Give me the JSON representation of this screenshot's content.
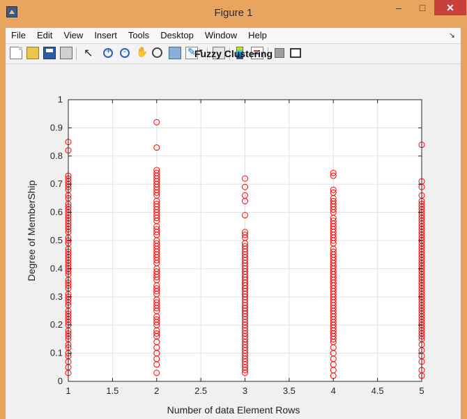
{
  "window": {
    "title": "Figure 1",
    "minimize_label": "–",
    "maximize_label": "□",
    "close_label": "✕"
  },
  "menu": {
    "items": [
      {
        "label": "File"
      },
      {
        "label": "Edit"
      },
      {
        "label": "View"
      },
      {
        "label": "Insert"
      },
      {
        "label": "Tools"
      },
      {
        "label": "Desktop"
      },
      {
        "label": "Window"
      },
      {
        "label": "Help"
      }
    ]
  },
  "toolbar": {
    "icons": [
      "new-figure-icon",
      "open-file-icon",
      "save-icon",
      "print-icon",
      "pointer-icon",
      "zoom-in-icon",
      "zoom-out-icon",
      "pan-icon",
      "rotate-3d-icon",
      "data-cursor-icon",
      "brush-icon",
      "brush-dropdown-icon",
      "link-plot-icon",
      "colorbar-icon",
      "legend-icon",
      "hide-plot-tools-icon",
      "show-plot-tools-icon"
    ]
  },
  "chart_data": {
    "type": "scatter",
    "title": "Fuzzy Clustering",
    "xlabel": "Number of data Element Rows",
    "ylabel": "Degree of MemberShip",
    "xlim": [
      1,
      5
    ],
    "ylim": [
      0,
      1
    ],
    "xticks": [
      "1",
      "1.5",
      "2",
      "2.5",
      "3",
      "3.5",
      "4",
      "4.5",
      "5"
    ],
    "yticks": [
      "0",
      "0.1",
      "0.2",
      "0.3",
      "0.4",
      "0.5",
      "0.6",
      "0.7",
      "0.8",
      "0.9",
      "1"
    ],
    "grid": true,
    "marker": "circle",
    "marker_color": "#ff0000",
    "series": [
      {
        "x": [
          1,
          1,
          1,
          1,
          1,
          1,
          1,
          1,
          1,
          1,
          1,
          1,
          1,
          1,
          1,
          1,
          1,
          1,
          1,
          1,
          1,
          1,
          1,
          1,
          1,
          1,
          1,
          1,
          1,
          1,
          1,
          1,
          1,
          1,
          1,
          1,
          1,
          1,
          1,
          1,
          1,
          1,
          1,
          1,
          1,
          1,
          1,
          1,
          1,
          1,
          1,
          1,
          1,
          1,
          1,
          1,
          1,
          1,
          1,
          1
        ],
        "y": [
          0.85,
          0.82,
          0.73,
          0.72,
          0.71,
          0.7,
          0.69,
          0.68,
          0.66,
          0.65,
          0.63,
          0.62,
          0.61,
          0.6,
          0.59,
          0.58,
          0.57,
          0.56,
          0.55,
          0.54,
          0.53,
          0.51,
          0.5,
          0.49,
          0.47,
          0.46,
          0.45,
          0.44,
          0.43,
          0.42,
          0.41,
          0.4,
          0.39,
          0.38,
          0.36,
          0.35,
          0.34,
          0.33,
          0.31,
          0.3,
          0.29,
          0.28,
          0.27,
          0.25,
          0.24,
          0.23,
          0.22,
          0.21,
          0.2,
          0.18,
          0.17,
          0.16,
          0.15,
          0.13,
          0.12,
          0.1,
          0.09,
          0.07,
          0.05,
          0.03
        ]
      },
      {
        "x": [
          2,
          2,
          2,
          2,
          2,
          2,
          2,
          2,
          2,
          2,
          2,
          2,
          2,
          2,
          2,
          2,
          2,
          2,
          2,
          2,
          2,
          2,
          2,
          2,
          2,
          2,
          2,
          2,
          2,
          2,
          2,
          2,
          2,
          2,
          2,
          2,
          2,
          2,
          2,
          2,
          2,
          2,
          2,
          2,
          2,
          2,
          2,
          2,
          2,
          2,
          2,
          2,
          2,
          2,
          2,
          2,
          2,
          2,
          2,
          2
        ],
        "y": [
          0.92,
          0.83,
          0.75,
          0.74,
          0.73,
          0.72,
          0.71,
          0.7,
          0.69,
          0.68,
          0.67,
          0.66,
          0.64,
          0.63,
          0.62,
          0.61,
          0.6,
          0.59,
          0.58,
          0.57,
          0.55,
          0.54,
          0.53,
          0.52,
          0.5,
          0.49,
          0.48,
          0.47,
          0.46,
          0.45,
          0.44,
          0.43,
          0.42,
          0.4,
          0.39,
          0.38,
          0.37,
          0.36,
          0.34,
          0.33,
          0.32,
          0.31,
          0.29,
          0.28,
          0.27,
          0.26,
          0.25,
          0.23,
          0.22,
          0.21,
          0.2,
          0.18,
          0.17,
          0.16,
          0.14,
          0.12,
          0.1,
          0.08,
          0.06,
          0.03
        ]
      },
      {
        "x": [
          3,
          3,
          3,
          3,
          3,
          3,
          3,
          3,
          3,
          3,
          3,
          3,
          3,
          3,
          3,
          3,
          3,
          3,
          3,
          3,
          3,
          3,
          3,
          3,
          3,
          3,
          3,
          3,
          3,
          3,
          3,
          3,
          3,
          3,
          3,
          3,
          3,
          3,
          3,
          3,
          3,
          3,
          3,
          3,
          3,
          3,
          3,
          3,
          3,
          3,
          3,
          3,
          3,
          3,
          3,
          3,
          3,
          3,
          3,
          3
        ],
        "y": [
          0.72,
          0.69,
          0.66,
          0.64,
          0.59,
          0.53,
          0.52,
          0.51,
          0.49,
          0.48,
          0.47,
          0.46,
          0.45,
          0.44,
          0.43,
          0.42,
          0.41,
          0.4,
          0.39,
          0.38,
          0.37,
          0.36,
          0.35,
          0.34,
          0.33,
          0.32,
          0.31,
          0.3,
          0.29,
          0.28,
          0.27,
          0.26,
          0.25,
          0.24,
          0.23,
          0.22,
          0.21,
          0.2,
          0.19,
          0.18,
          0.17,
          0.16,
          0.15,
          0.14,
          0.13,
          0.12,
          0.11,
          0.1,
          0.09,
          0.08,
          0.07,
          0.06,
          0.05,
          0.04,
          0.03,
          0.24,
          0.26,
          0.31,
          0.33,
          0.35
        ]
      },
      {
        "x": [
          4,
          4,
          4,
          4,
          4,
          4,
          4,
          4,
          4,
          4,
          4,
          4,
          4,
          4,
          4,
          4,
          4,
          4,
          4,
          4,
          4,
          4,
          4,
          4,
          4,
          4,
          4,
          4,
          4,
          4,
          4,
          4,
          4,
          4,
          4,
          4,
          4,
          4,
          4,
          4,
          4,
          4,
          4,
          4,
          4,
          4,
          4,
          4,
          4,
          4,
          4,
          4,
          4,
          4,
          4,
          4,
          4,
          4,
          4,
          4
        ],
        "y": [
          0.74,
          0.73,
          0.68,
          0.67,
          0.65,
          0.64,
          0.63,
          0.62,
          0.61,
          0.6,
          0.58,
          0.57,
          0.56,
          0.55,
          0.54,
          0.53,
          0.52,
          0.51,
          0.5,
          0.49,
          0.47,
          0.46,
          0.45,
          0.44,
          0.43,
          0.42,
          0.41,
          0.4,
          0.39,
          0.38,
          0.37,
          0.36,
          0.35,
          0.34,
          0.33,
          0.32,
          0.31,
          0.3,
          0.29,
          0.28,
          0.27,
          0.26,
          0.25,
          0.24,
          0.23,
          0.22,
          0.21,
          0.2,
          0.19,
          0.18,
          0.17,
          0.16,
          0.15,
          0.14,
          0.12,
          0.1,
          0.08,
          0.06,
          0.04,
          0.02
        ]
      },
      {
        "x": [
          5,
          5,
          5,
          5,
          5,
          5,
          5,
          5,
          5,
          5,
          5,
          5,
          5,
          5,
          5,
          5,
          5,
          5,
          5,
          5,
          5,
          5,
          5,
          5,
          5,
          5,
          5,
          5,
          5,
          5,
          5,
          5,
          5,
          5,
          5,
          5,
          5,
          5,
          5,
          5,
          5,
          5,
          5,
          5,
          5,
          5,
          5,
          5,
          5,
          5,
          5,
          5,
          5,
          5,
          5,
          5,
          5,
          5,
          5,
          5
        ],
        "y": [
          0.84,
          0.71,
          0.69,
          0.66,
          0.64,
          0.63,
          0.62,
          0.61,
          0.6,
          0.59,
          0.58,
          0.57,
          0.56,
          0.55,
          0.54,
          0.53,
          0.52,
          0.51,
          0.5,
          0.49,
          0.48,
          0.47,
          0.46,
          0.45,
          0.44,
          0.43,
          0.42,
          0.41,
          0.4,
          0.39,
          0.38,
          0.37,
          0.36,
          0.35,
          0.34,
          0.33,
          0.32,
          0.31,
          0.3,
          0.29,
          0.28,
          0.27,
          0.26,
          0.25,
          0.24,
          0.23,
          0.22,
          0.21,
          0.2,
          0.19,
          0.18,
          0.17,
          0.16,
          0.15,
          0.13,
          0.11,
          0.09,
          0.07,
          0.04,
          0.02
        ]
      }
    ]
  }
}
